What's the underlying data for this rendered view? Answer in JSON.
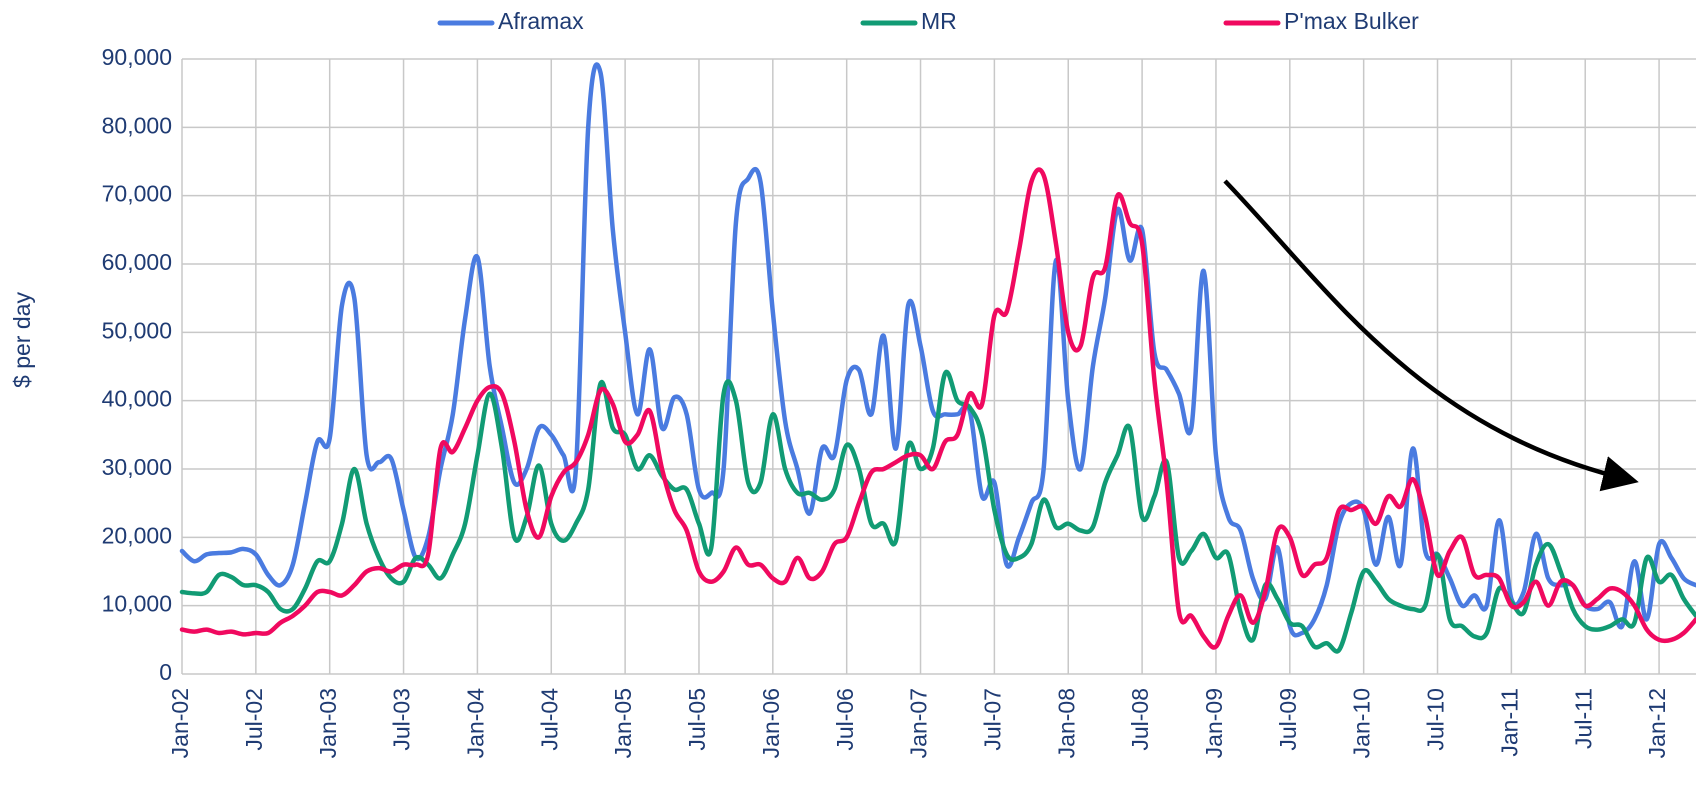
{
  "chart_data": {
    "type": "line",
    "y_label": "$ per day",
    "categories": [
      "Jan-02",
      null,
      null,
      null,
      null,
      null,
      "Jul-02",
      null,
      null,
      null,
      null,
      null,
      "Jan-03",
      null,
      null,
      null,
      null,
      null,
      "Jul-03",
      null,
      null,
      null,
      null,
      null,
      "Jan-04",
      null,
      null,
      null,
      null,
      null,
      "Jul-04",
      null,
      null,
      null,
      null,
      null,
      "Jan-05",
      null,
      null,
      null,
      null,
      null,
      "Jul-05",
      null,
      null,
      null,
      null,
      null,
      "Jan-06",
      null,
      null,
      null,
      null,
      null,
      "Jul-06",
      null,
      null,
      null,
      null,
      null,
      "Jan-07",
      null,
      null,
      null,
      null,
      null,
      "Jul-07",
      null,
      null,
      null,
      null,
      null,
      "Jan-08",
      null,
      null,
      null,
      null,
      null,
      "Jul-08",
      null,
      null,
      null,
      null,
      null,
      "Jan-09",
      null,
      null,
      null,
      null,
      null,
      "Jul-09",
      null,
      null,
      null,
      null,
      null,
      "Jan-10",
      null,
      null,
      null,
      null,
      null,
      "Jul-10",
      null,
      null,
      null,
      null,
      null,
      "Jan-11",
      null,
      null,
      null,
      null,
      null,
      "Jul-11",
      null,
      null,
      null,
      null,
      null,
      "Jan-12",
      null,
      null,
      null
    ],
    "series": [
      {
        "name": "Aframax",
        "color": "#4a7be0",
        "values": [
          18000,
          16500,
          17500,
          17700,
          17800,
          18300,
          17500,
          14500,
          13000,
          16000,
          25000,
          34000,
          34500,
          54000,
          55000,
          32000,
          31000,
          31500,
          24000,
          17000,
          20000,
          30000,
          38000,
          52000,
          61000,
          45000,
          36000,
          28000,
          30000,
          36000,
          35000,
          32000,
          30000,
          80000,
          88000,
          65000,
          50000,
          38000,
          47500,
          36000,
          40500,
          38000,
          27000,
          26500,
          30000,
          66000,
          72500,
          72000,
          53000,
          37000,
          30000,
          23500,
          33000,
          32000,
          43000,
          44500,
          38000,
          49500,
          33000,
          54000,
          48000,
          38500,
          38000,
          38000,
          38500,
          26000,
          28000,
          16000,
          20000,
          25000,
          30000,
          60500,
          40000,
          30000,
          45000,
          55000,
          68000,
          60500,
          65000,
          47000,
          44500,
          41000,
          36000,
          59000,
          32000,
          23000,
          21000,
          14000,
          11000,
          18500,
          7000,
          6000,
          8000,
          13000,
          22000,
          25000,
          24000,
          16000,
          23000,
          16000,
          33000,
          18000,
          17500,
          14000,
          10000,
          11500,
          10000,
          22500,
          11000,
          12000,
          20500,
          14000,
          13000,
          13000,
          10000,
          9500,
          10500,
          7000,
          16500,
          8000,
          19000,
          17000,
          14000,
          13000
        ]
      },
      {
        "name": "MR",
        "color": "#119b74",
        "values": [
          12000,
          11800,
          12000,
          14500,
          14200,
          13000,
          13000,
          12000,
          9500,
          9500,
          12500,
          16500,
          16500,
          22000,
          30000,
          22000,
          17000,
          14000,
          13500,
          17000,
          16000,
          14000,
          17500,
          22000,
          32000,
          41000,
          33000,
          20000,
          23000,
          30500,
          22000,
          19500,
          22000,
          27000,
          42500,
          36000,
          35000,
          30000,
          32000,
          29000,
          27000,
          27000,
          22000,
          18500,
          41000,
          40000,
          28000,
          28000,
          38000,
          30000,
          26500,
          26500,
          25500,
          27000,
          33500,
          30000,
          22000,
          22000,
          19500,
          33500,
          30000,
          33000,
          44000,
          40000,
          39000,
          35000,
          24000,
          17500,
          17000,
          19000,
          25500,
          21500,
          22000,
          21000,
          21500,
          28000,
          32000,
          36000,
          23000,
          26000,
          31000,
          17000,
          18000,
          20500,
          17000,
          17500,
          9000,
          5000,
          13000,
          11000,
          7500,
          7000,
          4000,
          4500,
          3500,
          9000,
          15000,
          13500,
          11000,
          10000,
          9500,
          10000,
          17500,
          8000,
          7000,
          5500,
          6000,
          12500,
          10500,
          9000,
          16000,
          19000,
          15000,
          9500,
          7000,
          6500,
          7000,
          8000,
          7500,
          17000,
          13500,
          14500,
          11000,
          8500
        ]
      },
      {
        "name": "P'max Bulker",
        "color": "#f0095f",
        "values": [
          6500,
          6200,
          6500,
          6000,
          6200,
          5800,
          6000,
          6000,
          7500,
          8500,
          10000,
          12000,
          12000,
          11500,
          13000,
          15000,
          15500,
          15000,
          16000,
          16000,
          17500,
          33000,
          32500,
          36000,
          40000,
          42000,
          41000,
          34000,
          24000,
          20000,
          26000,
          29500,
          31000,
          35000,
          41500,
          39500,
          34000,
          35000,
          38500,
          30000,
          24000,
          21000,
          15000,
          13500,
          15000,
          18500,
          16000,
          16000,
          14000,
          13500,
          17000,
          14000,
          15000,
          19000,
          20000,
          25000,
          29500,
          30000,
          31000,
          32000,
          32000,
          30000,
          34000,
          35000,
          41000,
          39500,
          52500,
          53000,
          62000,
          72000,
          73000,
          63000,
          50000,
          48000,
          58000,
          59500,
          70000,
          66000,
          63000,
          43000,
          28000,
          9000,
          8500,
          5500,
          4000,
          8500,
          11500,
          7500,
          12000,
          21000,
          20000,
          14500,
          16000,
          17000,
          24000,
          24000,
          24500,
          22000,
          26000,
          24500,
          28500,
          23000,
          14500,
          18000,
          20000,
          14500,
          14500,
          14000,
          10000,
          10500,
          13500,
          10000,
          13500,
          13000,
          10000,
          11000,
          12500,
          12000,
          10000,
          6500,
          5000,
          5000,
          6000,
          8000
        ]
      }
    ],
    "ylim": [
      0,
      90000
    ],
    "yticks": [
      0,
      {
        "value": 10000,
        "label": "10,000"
      },
      {
        "value": 20000,
        "label": "20,000"
      },
      {
        "value": 30000,
        "label": "30,000"
      },
      {
        "value": 40000,
        "label": "40,000"
      },
      {
        "value": 50000,
        "label": "50,000"
      },
      {
        "value": 60000,
        "label": "60,000"
      },
      {
        "value": 70000,
        "label": "70,000"
      },
      {
        "value": 80000,
        "label": "80,000"
      },
      {
        "value": 90000,
        "label": "90,000"
      }
    ],
    "grid": true,
    "legend": "top"
  }
}
